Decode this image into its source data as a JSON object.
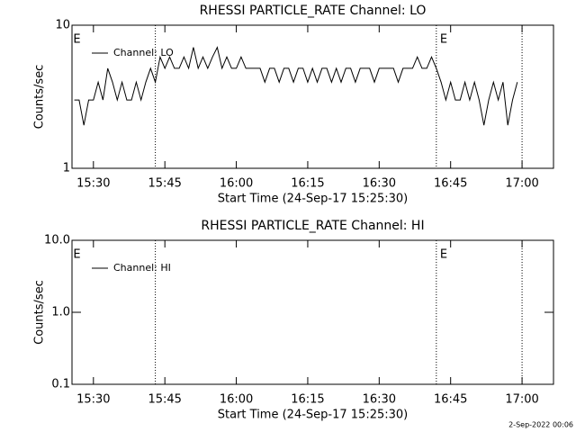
{
  "footer": "2-Sep-2022 00:06",
  "chart_data": [
    {
      "type": "line",
      "title": "RHESSI PARTICLE_RATE Channel: LO",
      "xlabel": "Start Time (24-Sep-17 15:25:30)",
      "ylabel": "Counts/sec",
      "log_y": true,
      "ylim": [
        1,
        10
      ],
      "yticks": [
        1,
        10
      ],
      "xlim": [
        "15:25",
        "17:06"
      ],
      "xticks": [
        "15:30",
        "15:45",
        "16:00",
        "16:15",
        "16:30",
        "16:45",
        "17:00"
      ],
      "legend": "upper left",
      "markers": [
        "15:43",
        "16:42",
        "17:00"
      ],
      "annotations": [
        {
          "x": "15:25",
          "text": "E"
        },
        {
          "x": "16:42",
          "text": "E"
        }
      ],
      "x": [
        "15:26",
        "15:27",
        "15:28",
        "15:29",
        "15:30",
        "15:31",
        "15:32",
        "15:33",
        "15:34",
        "15:35",
        "15:36",
        "15:37",
        "15:38",
        "15:39",
        "15:40",
        "15:41",
        "15:42",
        "15:43",
        "15:44",
        "15:45",
        "15:46",
        "15:47",
        "15:48",
        "15:49",
        "15:50",
        "15:51",
        "15:52",
        "15:53",
        "15:54",
        "15:55",
        "15:56",
        "15:57",
        "15:58",
        "15:59",
        "16:00",
        "16:01",
        "16:02",
        "16:03",
        "16:04",
        "16:05",
        "16:06",
        "16:07",
        "16:08",
        "16:09",
        "16:10",
        "16:11",
        "16:12",
        "16:13",
        "16:14",
        "16:15",
        "16:16",
        "16:17",
        "16:18",
        "16:19",
        "16:20",
        "16:21",
        "16:22",
        "16:23",
        "16:24",
        "16:25",
        "16:26",
        "16:27",
        "16:28",
        "16:29",
        "16:30",
        "16:31",
        "16:32",
        "16:33",
        "16:34",
        "16:35",
        "16:36",
        "16:37",
        "16:38",
        "16:39",
        "16:40",
        "16:41",
        "16:42",
        "16:43",
        "16:44",
        "16:45",
        "16:46",
        "16:47",
        "16:48",
        "16:49",
        "16:50",
        "16:51",
        "16:52",
        "16:53",
        "16:54",
        "16:55",
        "16:56",
        "16:57",
        "16:58",
        "16:59"
      ],
      "series": [
        {
          "name": "Channel: LO",
          "color": "#000000",
          "values": [
            3,
            3,
            2,
            3,
            3,
            4,
            3,
            5,
            4,
            3,
            4,
            3,
            3,
            4,
            3,
            4,
            5,
            4,
            6,
            5,
            6,
            5,
            5,
            6,
            5,
            7,
            5,
            6,
            5,
            6,
            7,
            5,
            6,
            5,
            5,
            6,
            5,
            5,
            5,
            5,
            4,
            5,
            5,
            4,
            5,
            5,
            4,
            5,
            5,
            4,
            5,
            4,
            5,
            5,
            4,
            5,
            4,
            5,
            5,
            4,
            5,
            5,
            5,
            4,
            5,
            5,
            5,
            5,
            4,
            5,
            5,
            5,
            6,
            5,
            5,
            6,
            5,
            4,
            3,
            4,
            3,
            3,
            4,
            3,
            4,
            3,
            2,
            3,
            4,
            3,
            4,
            2,
            3,
            4
          ]
        }
      ]
    },
    {
      "type": "line",
      "title": "RHESSI PARTICLE_RATE Channel: HI",
      "xlabel": "Start Time (24-Sep-17 15:25:30)",
      "ylabel": "Counts/sec",
      "log_y": true,
      "ylim": [
        0.1,
        10
      ],
      "yticks": [
        0.1,
        {
          "value": 1,
          "label": "1.0"
        },
        {
          "value": 10,
          "label": "10.0"
        }
      ],
      "xlim": [
        "15:25",
        "17:06"
      ],
      "xticks": [
        "15:30",
        "15:45",
        "16:00",
        "16:15",
        "16:30",
        "16:45",
        "17:00"
      ],
      "legend": "upper left",
      "markers": [
        "15:43",
        "16:42",
        "17:00"
      ],
      "annotations": [
        {
          "x": "15:25",
          "text": "E"
        },
        {
          "x": "16:42",
          "text": "E"
        }
      ],
      "x": [],
      "series": [
        {
          "name": "Channel: HI",
          "color": "#000000",
          "values": []
        }
      ]
    }
  ]
}
